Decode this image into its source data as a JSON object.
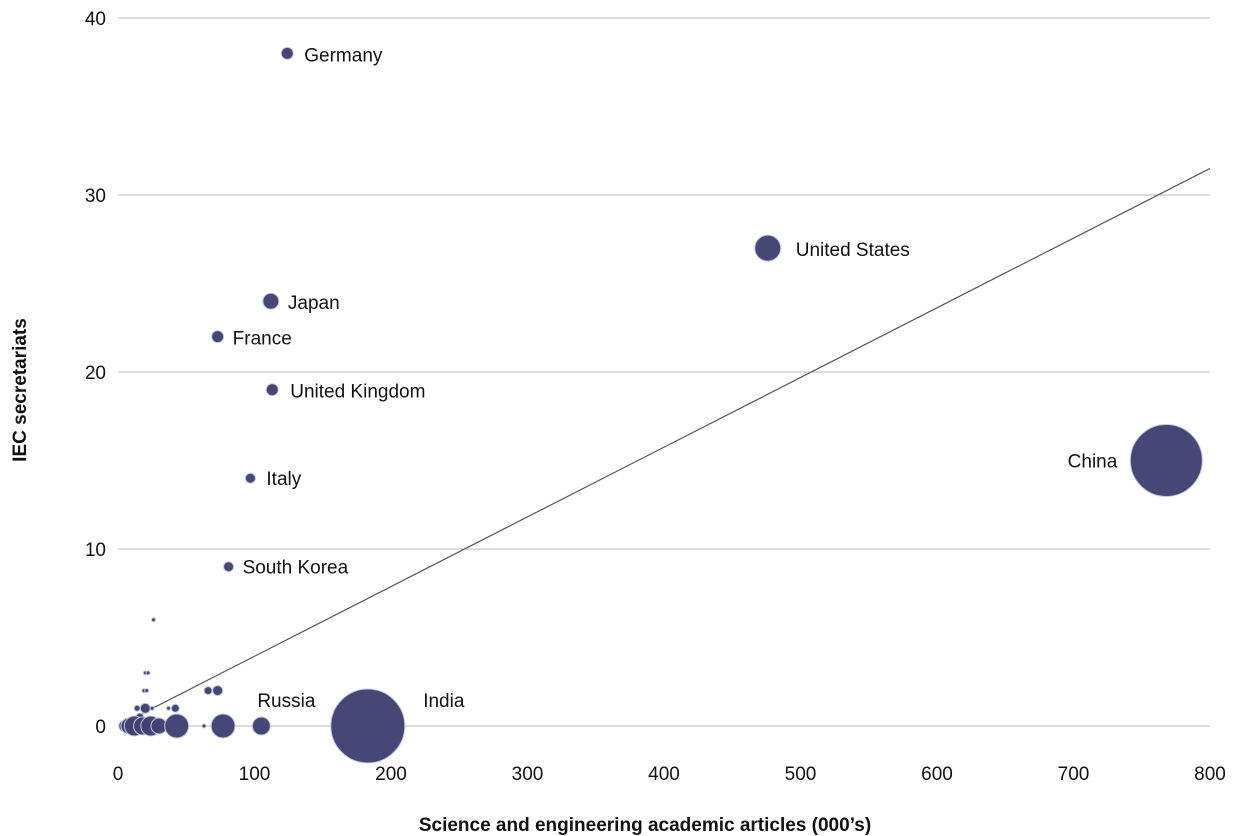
{
  "chart_data": {
    "type": "scatter",
    "title": "",
    "xlabel": "Science and engineering academic articles (000’s)",
    "ylabel": "IEC secretariats",
    "xlim": [
      0,
      800
    ],
    "ylim": [
      0,
      40
    ],
    "x_ticks": [
      "0",
      "100",
      "200",
      "300",
      "400",
      "500",
      "600",
      "700",
      "800"
    ],
    "y_ticks": [
      "0",
      "10",
      "20",
      "30",
      "40"
    ],
    "grid": "horizontal",
    "bubble_color": "#3f4173",
    "trendline": {
      "x": [
        5,
        800
      ],
      "y": [
        0.2,
        31.5
      ]
    },
    "labeled_points": [
      {
        "name": "Germany",
        "x": 124,
        "y": 38,
        "size": 6
      },
      {
        "name": "United States",
        "x": 476,
        "y": 27,
        "size": 13
      },
      {
        "name": "Japan",
        "x": 112,
        "y": 24,
        "size": 8
      },
      {
        "name": "France",
        "x": 73,
        "y": 22,
        "size": 6
      },
      {
        "name": "United Kingdom",
        "x": 113,
        "y": 19,
        "size": 6
      },
      {
        "name": "China",
        "x": 768,
        "y": 15,
        "size": 36
      },
      {
        "name": "Italy",
        "x": 97,
        "y": 14,
        "size": 5
      },
      {
        "name": "South Korea",
        "x": 81,
        "y": 9,
        "size": 5
      },
      {
        "name": "Russia",
        "x": 105,
        "y": 0,
        "size": 9
      },
      {
        "name": "India",
        "x": 183,
        "y": 0,
        "size": 37
      }
    ],
    "other_points": [
      {
        "x": 26,
        "y": 6,
        "size": 2
      },
      {
        "x": 20,
        "y": 3,
        "size": 2
      },
      {
        "x": 22,
        "y": 3,
        "size": 2
      },
      {
        "x": 19,
        "y": 2,
        "size": 2
      },
      {
        "x": 21,
        "y": 2,
        "size": 2
      },
      {
        "x": 66,
        "y": 2,
        "size": 4
      },
      {
        "x": 73,
        "y": 2,
        "size": 5
      },
      {
        "x": 14,
        "y": 1,
        "size": 3
      },
      {
        "x": 18,
        "y": 1,
        "size": 2
      },
      {
        "x": 20,
        "y": 1,
        "size": 5
      },
      {
        "x": 25,
        "y": 1,
        "size": 2
      },
      {
        "x": 37,
        "y": 1,
        "size": 2
      },
      {
        "x": 42,
        "y": 1,
        "size": 4
      },
      {
        "x": 16,
        "y": 0.5,
        "size": 4
      },
      {
        "x": 5,
        "y": 0,
        "size": 6
      },
      {
        "x": 8,
        "y": 0,
        "size": 8
      },
      {
        "x": 12,
        "y": 0,
        "size": 10
      },
      {
        "x": 18,
        "y": 0,
        "size": 9
      },
      {
        "x": 24,
        "y": 0,
        "size": 10
      },
      {
        "x": 30,
        "y": 0,
        "size": 8
      },
      {
        "x": 43,
        "y": 0,
        "size": 12
      },
      {
        "x": 63,
        "y": 0,
        "size": 2
      },
      {
        "x": 77,
        "y": 0,
        "size": 12
      }
    ]
  }
}
